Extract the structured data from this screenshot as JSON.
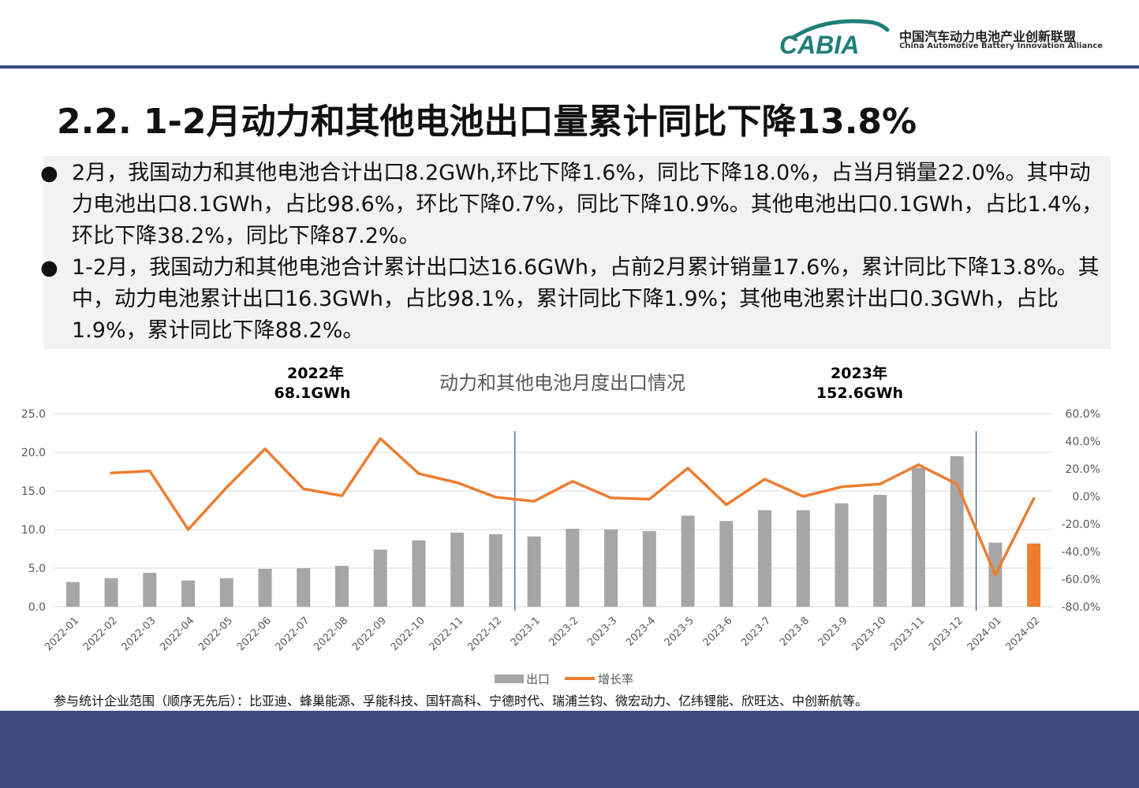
{
  "logo": {
    "mark_text": "CABIA",
    "name_cn": "中国汽车动力电池产业创新联盟",
    "name_en": "China Automotive Battery Innovation Alliance",
    "brand_color": "#1f7f78"
  },
  "title": "2.2. 1-2月动力和其他电池出口量累计同比下降13.8%",
  "bullets": [
    "2月，我国动力和其他电池合计出口8.2GWh,环比下降1.6%，同比下降18.0%，占当月销量22.0%。其中动力电池出口8.1GWh，占比98.6%，环比下降0.7%，同比下降10.9%。其他电池出口0.1GWh，占比1.4%，环比下降38.2%，同比下降87.2%。",
    "1-2月，我国动力和其他电池合计累计出口达16.6GWh，占前2月累计销量17.6%，累计同比下降13.8%。其中，动力电池累计出口16.3GWh，占比98.1%，累计同比下降1.9%；其他电池累计出口0.3GWh，占比1.9%，累计同比下降88.2%。"
  ],
  "annotations": {
    "y2022_label": "2022年",
    "y2022_value": "68.1GWh",
    "y2023_label": "2023年",
    "y2023_value": "152.6GWh"
  },
  "chart_data": {
    "type": "bar",
    "title": "动力和其他电池月度出口情况",
    "categories": [
      "2022-01",
      "2022-02",
      "2022-03",
      "2022-04",
      "2022-05",
      "2022-06",
      "2022-07",
      "2022-08",
      "2022-09",
      "2022-10",
      "2022-11",
      "2022-12",
      "2023-1",
      "2023-2",
      "2023-3",
      "2023-4",
      "2023-5",
      "2023-6",
      "2023-7",
      "2023-8",
      "2023-9",
      "2023-10",
      "2023-11",
      "2023-12",
      "2024-01",
      "2024-02"
    ],
    "series": [
      {
        "name": "出口",
        "type": "bar",
        "axis": "left",
        "color": "#a6a6a6",
        "highlight_last_color": "#ed7d31",
        "values": [
          3.2,
          3.7,
          4.4,
          3.4,
          3.7,
          4.9,
          5.0,
          5.3,
          7.4,
          8.6,
          9.6,
          9.4,
          9.1,
          10.1,
          10.0,
          9.8,
          11.8,
          11.1,
          12.5,
          12.5,
          13.4,
          14.5,
          18.0,
          19.5,
          8.3,
          8.2
        ]
      },
      {
        "name": "增长率",
        "type": "line",
        "axis": "right",
        "color": "#ed7d31",
        "values": [
          null,
          17.0,
          18.5,
          -24.0,
          6.5,
          34.5,
          5.5,
          0.5,
          42.0,
          16.5,
          10.0,
          -0.5,
          -3.5,
          11.0,
          -1.0,
          -2.0,
          20.5,
          -6.0,
          12.5,
          0.0,
          7.0,
          9.0,
          23.0,
          9.0,
          -57.0,
          -1.5
        ]
      }
    ],
    "y_left": {
      "min": 0,
      "max": 25,
      "ticks": [
        "0.0",
        "5.0",
        "10.0",
        "15.0",
        "20.0",
        "25.0"
      ]
    },
    "y_right": {
      "min": -80,
      "max": 60,
      "ticks": [
        "-80.0%",
        "-60.0%",
        "-40.0%",
        "-20.0%",
        "0.0%",
        "20.0%",
        "40.0%",
        "60.0%"
      ]
    },
    "gridlines": true,
    "legend_position": "bottom",
    "divider_after": [
      "2022-12",
      "2023-12"
    ]
  },
  "footer_note": "参与统计企业范围（顺序无先后）：比亚迪、蜂巢能源、孚能科技、国轩高科、宁德时代、瑞浦兰钧、微宏动力、亿纬锂能、欣旺达、中创新航等。"
}
